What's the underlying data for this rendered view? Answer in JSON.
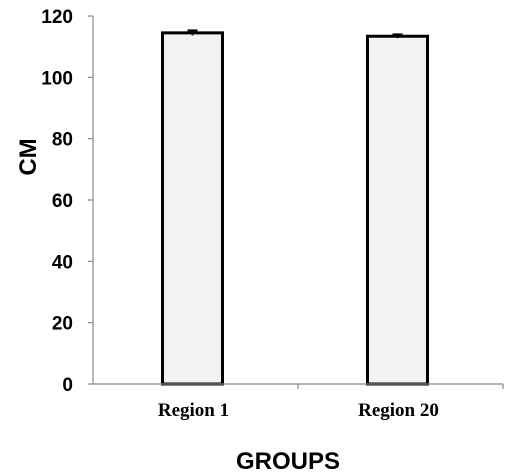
{
  "chart_data": {
    "type": "bar",
    "categories": [
      "Region 1",
      "Region 20"
    ],
    "values": [
      114.5,
      113.4
    ],
    "errors": [
      0.8,
      0.6
    ],
    "xlabel": "GROUPS",
    "ylabel": "CM",
    "ylim": [
      0,
      120
    ],
    "yticks": [
      0,
      20,
      40,
      60,
      80,
      100,
      120
    ],
    "grid": false,
    "colors": {
      "bar_fill": "#f2f2f2",
      "bar_stroke": "#000000",
      "axis": "#888888",
      "error_bar": "#000000"
    }
  }
}
